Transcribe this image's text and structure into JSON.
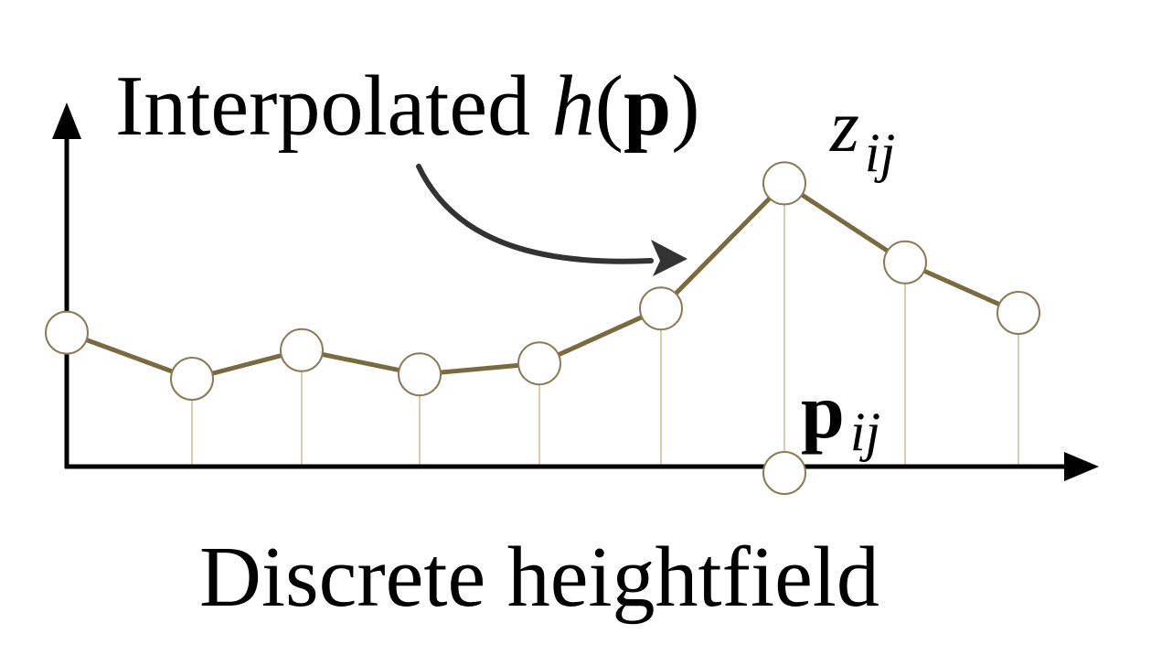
{
  "title": {
    "prefix": "Interpolated ",
    "func": "h",
    "open": "(",
    "arg": "p",
    "close": ")"
  },
  "peak_label": {
    "base": "z",
    "sub": "ij"
  },
  "point_label": {
    "base": "p",
    "sub": "ij"
  },
  "caption": "Discrete heightfield",
  "samples": [
    0.61,
    0.4,
    0.53,
    0.42,
    0.47,
    0.72,
    1.29,
    0.93,
    0.7
  ],
  "peak_index": 6,
  "colors": {
    "curve": "#7a6a40",
    "stem": "#d8ccae",
    "node_stroke": "#8b7a55",
    "node_fill": "#ffffff",
    "axis": "#000000",
    "arrow": "#333333"
  }
}
